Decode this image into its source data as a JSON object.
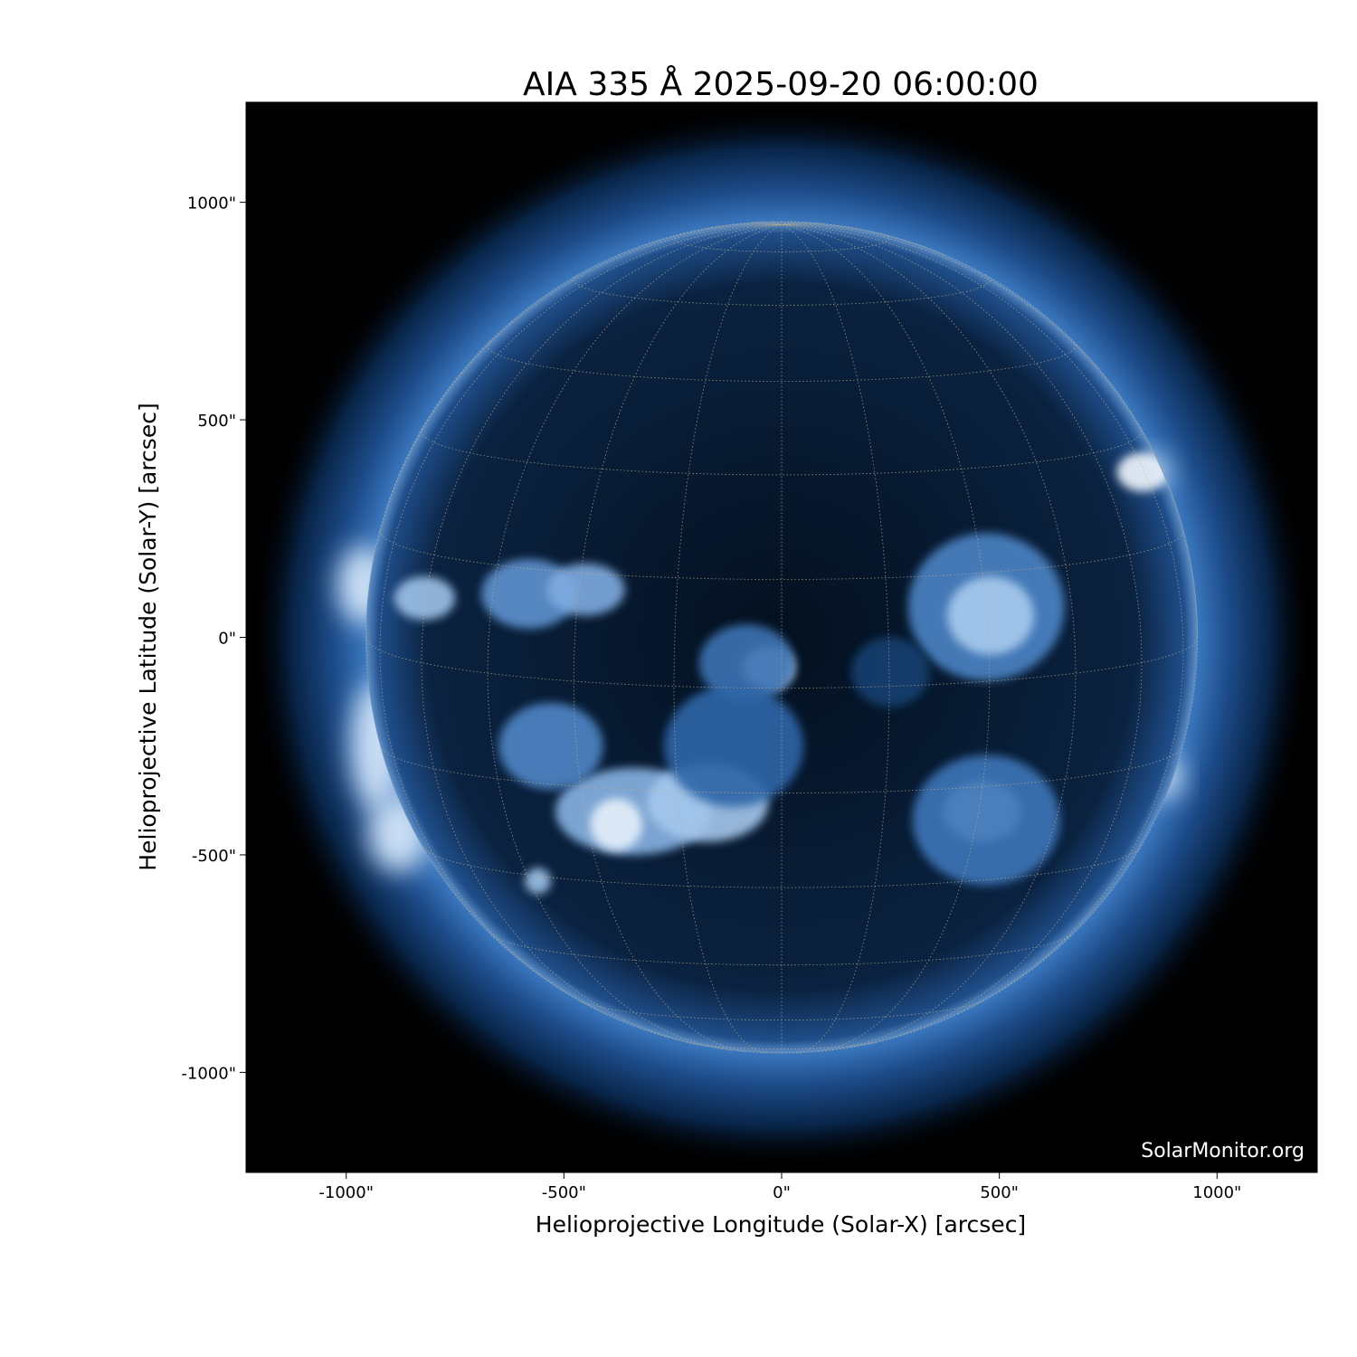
{
  "chart_data": {
    "type": "heatmap",
    "title": "AIA 335 Å 2025-09-20 06:00:00",
    "xlabel": "Helioprojective Longitude (Solar-X) [arcsec]",
    "ylabel": "Helioprojective Latitude (Solar-Y) [arcsec]",
    "xlim": [
      -1230,
      1230
    ],
    "ylim": [
      -1230,
      1230
    ],
    "xticks": [
      -1000,
      -500,
      0,
      500,
      1000
    ],
    "xtick_labels": [
      "-1000\"",
      "-500\"",
      "0\"",
      "500\"",
      "1000\""
    ],
    "yticks": [
      1000,
      500,
      0,
      -500,
      -1000
    ],
    "ytick_labels": [
      "1000\"",
      "500\"",
      "0\"",
      "-500\"",
      "-1000\""
    ],
    "solar_radius_arcsec": 955,
    "grid": "heliographic lat/lon, 15° spacing, dotted",
    "colormap": [
      "#000000",
      "#0b2a55",
      "#2f66a8",
      "#8fb6e0",
      "#ffffff"
    ],
    "watermark": "SolarMonitor.org"
  }
}
